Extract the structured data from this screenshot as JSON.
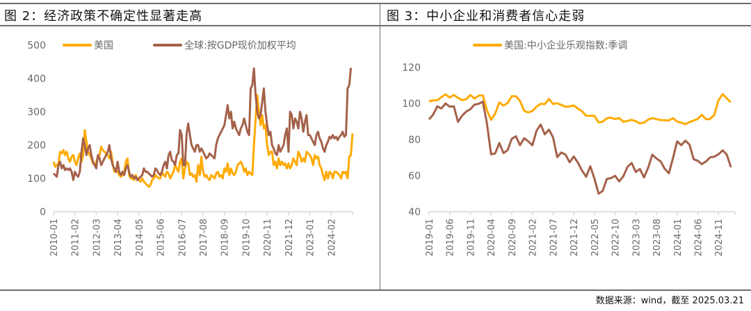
{
  "titles": {
    "left": "图 2：经济政策不确定性显著走高",
    "right": "图 3：中小企业和消费者信心走弱"
  },
  "footer": "数据来源：wind，截至 2025.03.21",
  "colors": {
    "yellow": "#FFAA00",
    "brown": "#A5614A"
  },
  "chart_data": [
    {
      "type": "line",
      "start": "2010-01",
      "ylim": [
        0,
        500
      ],
      "yticks": [
        0,
        100,
        200,
        300,
        400,
        500
      ],
      "xtick_labels": [
        "2010-01",
        "2011-02",
        "2012-03",
        "2013-04",
        "2014-05",
        "2015-06",
        "2016-07",
        "2017-08",
        "2018-09",
        "2019-10",
        "2020-11",
        "2021-12",
        "2023-01",
        "2024-02"
      ],
      "legend": "top",
      "series": [
        {
          "name": "美国",
          "color": "#FFAA00",
          "values": [
            150,
            135,
            140,
            145,
            180,
            175,
            185,
            170,
            180,
            160,
            150,
            165,
            170,
            150,
            140,
            160,
            175,
            150,
            170,
            245,
            210,
            180,
            170,
            160,
            145,
            140,
            150,
            165,
            170,
            195,
            185,
            180,
            175,
            170,
            160,
            180,
            145,
            120,
            125,
            120,
            110,
            105,
            110,
            120,
            150,
            160,
            110,
            100,
            100,
            95,
            110,
            100,
            95,
            90,
            100,
            90,
            85,
            80,
            75,
            80,
            95,
            100,
            110,
            105,
            100,
            100,
            120,
            110,
            105,
            120,
            115,
            100,
            110,
            120,
            140,
            130,
            120,
            150,
            160,
            100,
            130,
            150,
            145,
            110,
            115,
            105,
            110,
            90,
            140,
            110,
            165,
            120,
            105,
            110,
            100,
            95,
            110,
            105,
            100,
            115,
            120,
            105,
            110,
            100,
            130,
            120,
            145,
            110,
            130,
            115,
            110,
            120,
            140,
            145,
            150,
            140,
            120,
            130,
            110,
            120,
            115,
            110,
            200,
            280,
            350,
            300,
            260,
            290,
            250,
            260,
            200,
            170,
            180,
            180,
            140,
            150,
            130,
            160,
            140,
            150,
            140,
            145,
            130,
            145,
            130,
            140,
            160,
            150,
            140,
            180,
            170,
            150,
            160,
            150,
            180,
            175,
            170,
            160,
            140,
            170,
            160,
            165,
            140,
            130,
            110,
            95,
            120,
            100,
            120,
            115,
            100,
            120,
            120,
            115,
            110,
            100,
            120,
            115,
            120,
            100,
            165,
            170,
            235
          ]
        },
        {
          "name": "全球:按GDP现价加权平均",
          "color": "#A5614A",
          "values": [
            115,
            110,
            105,
            140,
            150,
            130,
            140,
            125,
            130,
            125,
            130,
            120,
            95,
            120,
            110,
            105,
            120,
            180,
            220,
            200,
            170,
            190,
            200,
            170,
            150,
            140,
            130,
            170,
            160,
            140,
            150,
            160,
            170,
            180,
            200,
            160,
            140,
            130,
            120,
            150,
            120,
            110,
            120,
            110,
            130,
            140,
            120,
            105,
            110,
            100,
            105,
            95,
            100,
            105,
            110,
            130,
            120,
            120,
            115,
            110,
            105,
            110,
            130,
            125,
            115,
            110,
            120,
            140,
            150,
            130,
            170,
            180,
            155,
            150,
            140,
            170,
            175,
            245,
            230,
            140,
            140,
            235,
            265,
            230,
            200,
            190,
            180,
            200,
            200,
            180,
            190,
            180,
            170,
            160,
            165,
            175,
            170,
            165,
            160,
            200,
            220,
            230,
            240,
            250,
            260,
            290,
            320,
            280,
            300,
            250,
            270,
            250,
            240,
            230,
            250,
            260,
            280,
            260,
            240,
            230,
            370,
            380,
            430,
            350,
            300,
            280,
            290,
            330,
            370,
            300,
            260,
            230,
            240,
            200,
            190,
            175,
            170,
            200,
            180,
            190,
            200,
            230,
            250,
            180,
            300,
            290,
            250,
            280,
            270,
            250,
            300,
            280,
            240,
            270,
            290,
            230,
            230,
            220,
            210,
            200,
            230,
            240,
            220,
            210,
            190,
            180,
            200,
            210,
            225,
            220,
            230,
            220,
            225,
            215,
            225,
            230,
            240,
            225,
            230,
            370,
            380,
            432
          ]
        }
      ]
    },
    {
      "type": "line",
      "start": "2019-01",
      "ylim": [
        40,
        120
      ],
      "yticks": [
        40,
        60,
        80,
        100,
        120
      ],
      "xtick_labels": [
        "2019-01",
        "2019-06",
        "2019-11",
        "2020-04",
        "2020-09",
        "2021-02",
        "2021-07",
        "2021-12",
        "2022-05",
        "2022-10",
        "2023-03",
        "2023-08",
        "2024-01",
        "2024-06",
        "2024-11"
      ],
      "legend": "top",
      "series": [
        {
          "name": "美国:中小企业乐观指数:季调",
          "color": "#FFAA00",
          "values": [
            101.2,
            101.7,
            101.8,
            103.5,
            105.0,
            103.3,
            104.7,
            103.1,
            101.8,
            102.4,
            104.7,
            102.7,
            104.3,
            104.5,
            96.4,
            90.9,
            94.4,
            100.6,
            98.8,
            100.2,
            104.0,
            104.0,
            101.4,
            95.9,
            95.0,
            95.8,
            98.2,
            99.8,
            99.6,
            102.5,
            99.7,
            100.1,
            99.1,
            98.2,
            98.4,
            98.9,
            97.1,
            95.7,
            93.2,
            93.2,
            93.1,
            89.5,
            89.9,
            91.8,
            92.1,
            91.3,
            91.9,
            89.8,
            90.3,
            90.9,
            90.1,
            89.0,
            89.4,
            91.0,
            91.9,
            91.3,
            90.8,
            90.7,
            90.6,
            91.9,
            89.9,
            89.4,
            88.5,
            89.7,
            90.5,
            91.5,
            93.7,
            91.2,
            91.5,
            93.7,
            101.7,
            105.1,
            102.8,
            100.7
          ]
        },
        {
          "color": "#A5614A",
          "values": [
            91.2,
            93.8,
            98.4,
            97.2,
            100.0,
            98.2,
            98.4,
            89.8,
            93.2,
            95.5,
            96.8,
            99.3,
            99.8,
            101.0,
            89.1,
            71.8,
            72.3,
            78.1,
            72.5,
            74.1,
            80.4,
            81.8,
            76.9,
            80.7,
            79.0,
            76.8,
            84.9,
            88.3,
            82.9,
            85.5,
            81.2,
            70.3,
            72.8,
            71.7,
            67.4,
            70.6,
            67.2,
            62.8,
            59.4,
            65.2,
            58.4,
            50.0,
            51.5,
            58.2,
            58.6,
            59.9,
            56.8,
            59.7,
            64.9,
            67.0,
            62.0,
            63.7,
            59.0,
            64.4,
            71.6,
            69.5,
            67.9,
            63.8,
            61.3,
            69.7,
            79.0,
            76.9,
            79.4,
            77.2,
            69.1,
            68.2,
            66.4,
            67.9,
            70.1,
            70.5,
            71.8,
            74.0,
            71.7,
            64.7
          ]
        }
      ]
    }
  ]
}
